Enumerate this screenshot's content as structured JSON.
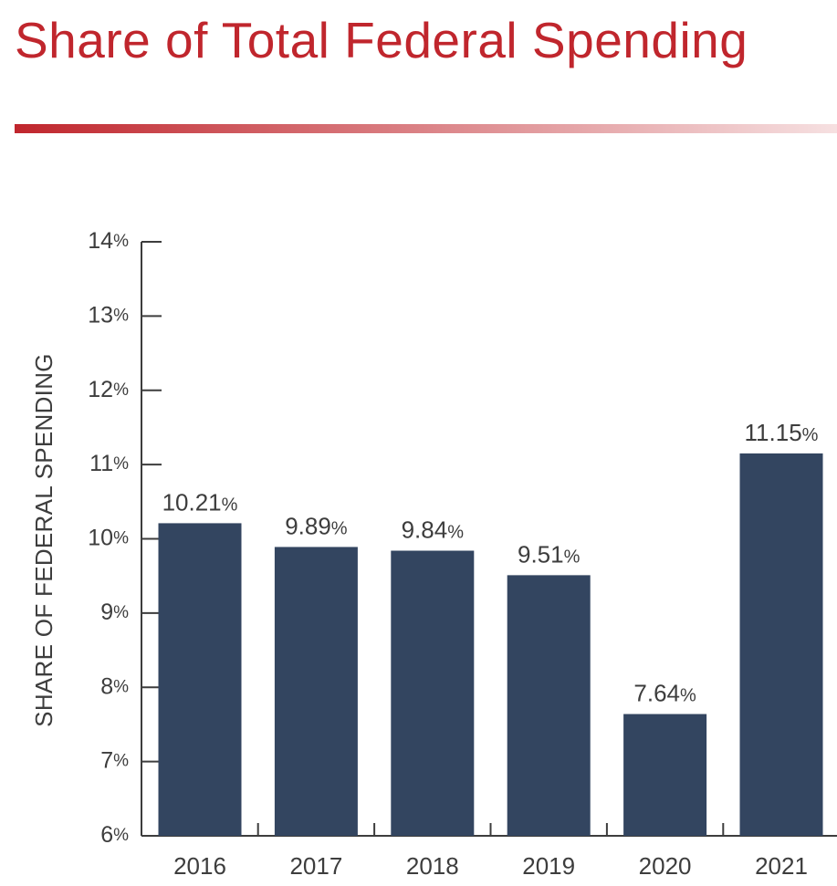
{
  "colors": {
    "title": "#c0262d",
    "bar": "#334560",
    "axis": "#3d3d3d",
    "text": "#3d3d3d",
    "rule_start": "#c0262d",
    "rule_end": "#f6e0e1"
  },
  "chart_data": {
    "type": "bar",
    "title": "Share of Total Federal Spending",
    "ylabel": "SHARE OF FEDERAL SPENDING",
    "xlabel": "",
    "categories": [
      "2016",
      "2017",
      "2018",
      "2019",
      "2020",
      "2021"
    ],
    "values": [
      10.21,
      9.89,
      9.84,
      9.51,
      7.64,
      11.15
    ],
    "value_labels": [
      "10.21",
      "9.89",
      "9.84",
      "9.51",
      "7.64",
      "11.15"
    ],
    "ylim": [
      6,
      14
    ],
    "yticks": [
      6,
      7,
      8,
      9,
      10,
      11,
      12,
      13,
      14
    ],
    "ytick_labels": [
      "6",
      "7",
      "8",
      "9",
      "10",
      "11",
      "12",
      "13",
      "14"
    ],
    "unit_suffix": "%",
    "grid": false,
    "legend": "none"
  }
}
